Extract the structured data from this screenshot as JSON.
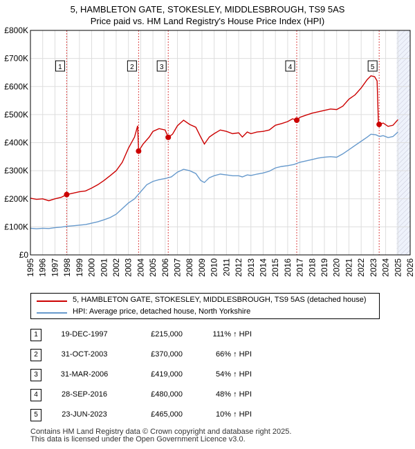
{
  "title_line1": "5, HAMBLETON GATE, STOKESLEY, MIDDLESBROUGH, TS9 5AS",
  "title_line2": "Price paid vs. HM Land Registry's House Price Index (HPI)",
  "colors": {
    "property": "#cc0000",
    "hpi": "#6699cc",
    "shade": "#eef2fb",
    "marker_line": "#dd4444"
  },
  "chart_data": {
    "type": "line",
    "ylim": [
      0,
      800000
    ],
    "xlim": [
      1995,
      2026
    ],
    "ytick_labels": [
      "£0",
      "£100K",
      "£200K",
      "£300K",
      "£400K",
      "£500K",
      "£600K",
      "£700K",
      "£800K"
    ],
    "yticks": [
      0,
      100000,
      200000,
      300000,
      400000,
      500000,
      600000,
      700000,
      800000
    ],
    "xticks": [
      1995,
      1996,
      1997,
      1998,
      1999,
      2000,
      2001,
      2002,
      2003,
      2004,
      2005,
      2006,
      2007,
      2008,
      2009,
      2010,
      2011,
      2012,
      2013,
      2014,
      2015,
      2016,
      2017,
      2018,
      2019,
      2020,
      2021,
      2022,
      2023,
      2024,
      2025,
      2026
    ],
    "forecast_start": 2024.9,
    "grid": true,
    "series": [
      {
        "name": "5, HAMBLETON GATE, STOKESLEY, MIDDLESBROUGH, TS9 5AS (detached house)",
        "points": [
          [
            1995.0,
            202000
          ],
          [
            1995.5,
            198000
          ],
          [
            1996.0,
            200000
          ],
          [
            1996.5,
            193000
          ],
          [
            1997.0,
            200000
          ],
          [
            1997.5,
            205000
          ],
          [
            1997.96,
            215000
          ],
          [
            1998.5,
            220000
          ],
          [
            1999.0,
            225000
          ],
          [
            1999.5,
            228000
          ],
          [
            2000.0,
            238000
          ],
          [
            2000.5,
            250000
          ],
          [
            2001.0,
            265000
          ],
          [
            2001.5,
            282000
          ],
          [
            2002.0,
            300000
          ],
          [
            2002.5,
            330000
          ],
          [
            2003.0,
            380000
          ],
          [
            2003.5,
            420000
          ],
          [
            2003.75,
            460000
          ],
          [
            2003.83,
            370000
          ],
          [
            2004.2,
            395000
          ],
          [
            2004.7,
            420000
          ],
          [
            2005.0,
            440000
          ],
          [
            2005.5,
            450000
          ],
          [
            2006.0,
            445000
          ],
          [
            2006.25,
            419000
          ],
          [
            2006.6,
            430000
          ],
          [
            2007.0,
            460000
          ],
          [
            2007.5,
            480000
          ],
          [
            2008.0,
            465000
          ],
          [
            2008.5,
            455000
          ],
          [
            2008.9,
            420000
          ],
          [
            2009.2,
            395000
          ],
          [
            2009.6,
            420000
          ],
          [
            2010.0,
            432000
          ],
          [
            2010.5,
            445000
          ],
          [
            2011.0,
            440000
          ],
          [
            2011.5,
            432000
          ],
          [
            2012.0,
            435000
          ],
          [
            2012.3,
            420000
          ],
          [
            2012.7,
            438000
          ],
          [
            2013.0,
            432000
          ],
          [
            2013.5,
            438000
          ],
          [
            2014.0,
            440000
          ],
          [
            2014.5,
            445000
          ],
          [
            2015.0,
            462000
          ],
          [
            2015.5,
            468000
          ],
          [
            2016.0,
            475000
          ],
          [
            2016.4,
            485000
          ],
          [
            2016.74,
            480000
          ],
          [
            2017.0,
            490000
          ],
          [
            2017.5,
            498000
          ],
          [
            2018.0,
            505000
          ],
          [
            2018.5,
            510000
          ],
          [
            2019.0,
            515000
          ],
          [
            2019.5,
            520000
          ],
          [
            2020.0,
            518000
          ],
          [
            2020.5,
            530000
          ],
          [
            2021.0,
            555000
          ],
          [
            2021.5,
            570000
          ],
          [
            2022.0,
            595000
          ],
          [
            2022.5,
            625000
          ],
          [
            2022.8,
            638000
          ],
          [
            2023.1,
            635000
          ],
          [
            2023.3,
            620000
          ],
          [
            2023.4,
            478000
          ],
          [
            2023.47,
            465000
          ],
          [
            2023.8,
            470000
          ],
          [
            2024.2,
            458000
          ],
          [
            2024.6,
            462000
          ],
          [
            2025.0,
            482000
          ]
        ]
      },
      {
        "name": "HPI: Average price, detached house, North Yorkshire",
        "points": [
          [
            1995.0,
            95000
          ],
          [
            1995.5,
            93000
          ],
          [
            1996.0,
            95000
          ],
          [
            1996.5,
            94000
          ],
          [
            1997.0,
            97000
          ],
          [
            1997.5,
            99000
          ],
          [
            1998.0,
            102000
          ],
          [
            1998.5,
            104000
          ],
          [
            1999.0,
            106000
          ],
          [
            1999.5,
            108000
          ],
          [
            2000.0,
            113000
          ],
          [
            2000.5,
            118000
          ],
          [
            2001.0,
            125000
          ],
          [
            2001.5,
            133000
          ],
          [
            2002.0,
            145000
          ],
          [
            2002.5,
            165000
          ],
          [
            2003.0,
            185000
          ],
          [
            2003.5,
            200000
          ],
          [
            2004.0,
            225000
          ],
          [
            2004.5,
            250000
          ],
          [
            2005.0,
            262000
          ],
          [
            2005.5,
            268000
          ],
          [
            2006.0,
            272000
          ],
          [
            2006.5,
            278000
          ],
          [
            2007.0,
            295000
          ],
          [
            2007.5,
            305000
          ],
          [
            2008.0,
            300000
          ],
          [
            2008.5,
            290000
          ],
          [
            2008.9,
            265000
          ],
          [
            2009.2,
            258000
          ],
          [
            2009.6,
            275000
          ],
          [
            2010.0,
            282000
          ],
          [
            2010.5,
            288000
          ],
          [
            2011.0,
            285000
          ],
          [
            2011.5,
            282000
          ],
          [
            2012.0,
            282000
          ],
          [
            2012.3,
            278000
          ],
          [
            2012.7,
            285000
          ],
          [
            2013.0,
            283000
          ],
          [
            2013.5,
            288000
          ],
          [
            2014.0,
            292000
          ],
          [
            2014.5,
            298000
          ],
          [
            2015.0,
            310000
          ],
          [
            2015.5,
            315000
          ],
          [
            2016.0,
            318000
          ],
          [
            2016.5,
            322000
          ],
          [
            2017.0,
            330000
          ],
          [
            2017.5,
            335000
          ],
          [
            2018.0,
            340000
          ],
          [
            2018.5,
            345000
          ],
          [
            2019.0,
            348000
          ],
          [
            2019.5,
            350000
          ],
          [
            2020.0,
            348000
          ],
          [
            2020.5,
            360000
          ],
          [
            2021.0,
            375000
          ],
          [
            2021.5,
            390000
          ],
          [
            2022.0,
            405000
          ],
          [
            2022.5,
            420000
          ],
          [
            2022.8,
            430000
          ],
          [
            2023.2,
            428000
          ],
          [
            2023.5,
            422000
          ],
          [
            2023.8,
            425000
          ],
          [
            2024.2,
            418000
          ],
          [
            2024.6,
            422000
          ],
          [
            2025.0,
            438000
          ]
        ]
      }
    ],
    "markers": [
      {
        "label": "1",
        "x": 1997.96,
        "y": 215000
      },
      {
        "label": "2",
        "x": 2003.83,
        "y": 370000
      },
      {
        "label": "3",
        "x": 2006.25,
        "y": 419000
      },
      {
        "label": "4",
        "x": 2016.74,
        "y": 480000
      },
      {
        "label": "5",
        "x": 2023.47,
        "y": 465000
      }
    ]
  },
  "legend": {
    "property_label": "5, HAMBLETON GATE, STOKESLEY, MIDDLESBROUGH, TS9 5AS (detached house)",
    "hpi_label": "HPI: Average price, detached house, North Yorkshire"
  },
  "transactions": [
    {
      "num": "1",
      "date": "19-DEC-1997",
      "price": "£215,000",
      "hpi": "111% ↑ HPI"
    },
    {
      "num": "2",
      "date": "31-OCT-2003",
      "price": "£370,000",
      "hpi": "66% ↑ HPI"
    },
    {
      "num": "3",
      "date": "31-MAR-2006",
      "price": "£419,000",
      "hpi": "54% ↑ HPI"
    },
    {
      "num": "4",
      "date": "28-SEP-2016",
      "price": "£480,000",
      "hpi": "48% ↑ HPI"
    },
    {
      "num": "5",
      "date": "23-JUN-2023",
      "price": "£465,000",
      "hpi": "10% ↑ HPI"
    }
  ],
  "footer": {
    "line1": "Contains HM Land Registry data © Crown copyright and database right 2025.",
    "line2": "This data is licensed under the Open Government Licence v3.0."
  }
}
